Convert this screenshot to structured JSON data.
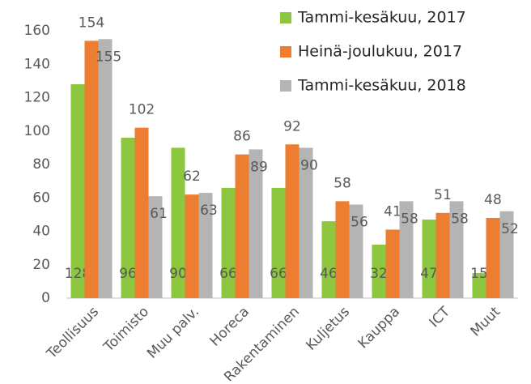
{
  "chart_data": {
    "type": "bar",
    "categories": [
      "Teollisuus",
      "Toimisto",
      "Muu palv.",
      "Horeca",
      "Rakentaminen",
      "Kuljetus",
      "Kauppa",
      "ICT",
      "Muut"
    ],
    "series": [
      {
        "name": "Tammi-kesäkuu, 2017",
        "color": "#8dc63f",
        "values": [
          128,
          96,
          90,
          66,
          66,
          46,
          32,
          47,
          15
        ]
      },
      {
        "name": "Heinä-joulukuu, 2017",
        "color": "#ed7d31",
        "values": [
          154,
          102,
          62,
          86,
          92,
          58,
          41,
          51,
          48
        ]
      },
      {
        "name": "Tammi-kesäkuu, 2018",
        "color": "#b4b4b4",
        "values": [
          155,
          61,
          63,
          89,
          90,
          56,
          58,
          58,
          52
        ]
      }
    ],
    "ylim": [
      0,
      160
    ],
    "yticks": [
      0,
      20,
      40,
      60,
      80,
      100,
      120,
      140,
      160
    ],
    "grid": false,
    "legend": "top-right"
  }
}
